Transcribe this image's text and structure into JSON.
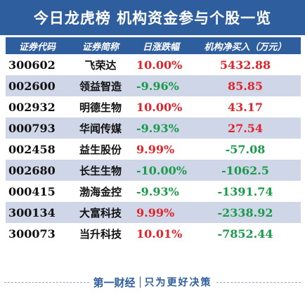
{
  "title": "今日龙虎榜  机构资金参与个股一览",
  "table": {
    "headers": [
      "证券代码",
      "证券简称",
      "日涨跌幅",
      "机构净买入（万元）"
    ],
    "rows": [
      {
        "code": "300602",
        "name": "飞荣达",
        "change": "10.00%",
        "net": "5432.88",
        "change_dir": "pos",
        "net_dir": "pos"
      },
      {
        "code": "002600",
        "name": "领益智造",
        "change": "-9.96%",
        "net": "85.85",
        "change_dir": "neg",
        "net_dir": "pos"
      },
      {
        "code": "002932",
        "name": "明德生物",
        "change": "10.00%",
        "net": "43.17",
        "change_dir": "pos",
        "net_dir": "pos"
      },
      {
        "code": "000793",
        "name": "华闻传媒",
        "change": "-9.93%",
        "net": "27.54",
        "change_dir": "neg",
        "net_dir": "pos"
      },
      {
        "code": "002458",
        "name": "益生股份",
        "change": "9.99%",
        "net": "-57.08",
        "change_dir": "pos",
        "net_dir": "neg"
      },
      {
        "code": "002680",
        "name": "长生生物",
        "change": "-10.00%",
        "net": "-1062.5",
        "change_dir": "neg",
        "net_dir": "neg"
      },
      {
        "code": "000415",
        "name": "渤海金控",
        "change": "-9.93%",
        "net": "-1391.74",
        "change_dir": "neg",
        "net_dir": "neg"
      },
      {
        "code": "300134",
        "name": "大富科技",
        "change": "9.99%",
        "net": "-2338.92",
        "change_dir": "pos",
        "net_dir": "neg"
      },
      {
        "code": "300073",
        "name": "当升科技",
        "change": "10.01%",
        "net": "-7852.44",
        "change_dir": "pos",
        "net_dir": "neg"
      }
    ]
  },
  "footer": {
    "brand": "第一财经",
    "slogan": "只为更好决策"
  },
  "colors": {
    "header_bg": "#2f5e9e",
    "row_shade": "#cfd6e8",
    "up": "#e0242b",
    "down": "#1a9a4a"
  }
}
